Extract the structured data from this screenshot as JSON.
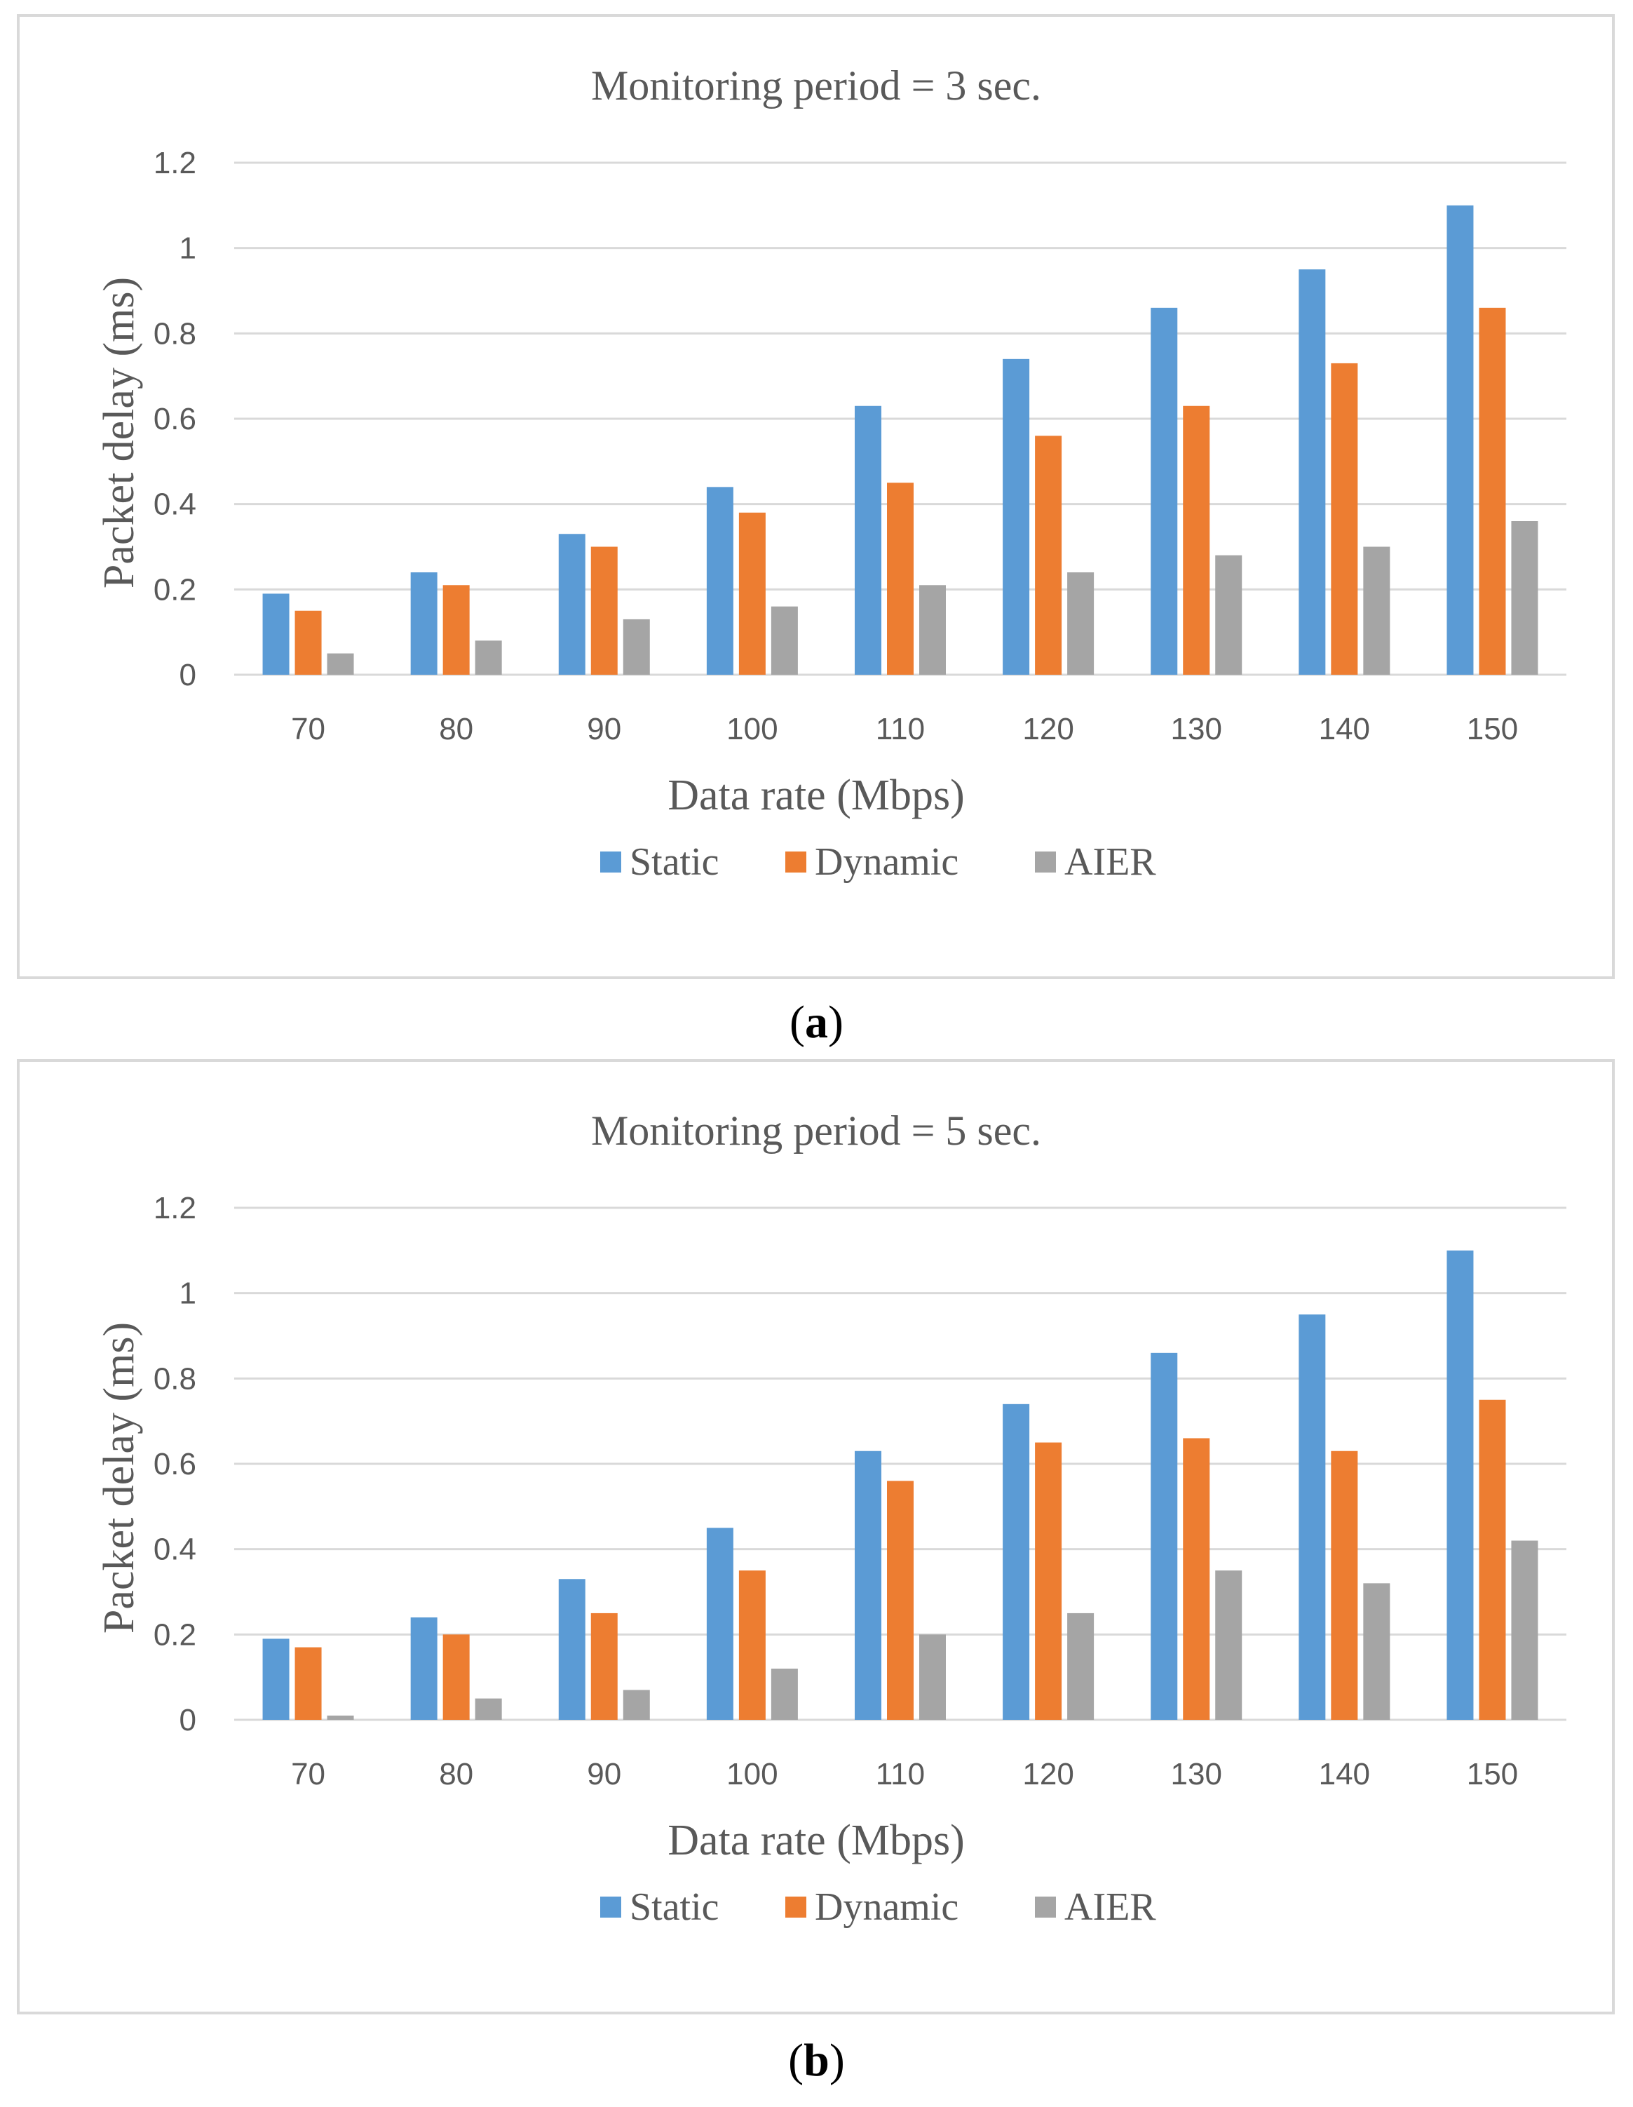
{
  "colors": {
    "static": "#5b9bd5",
    "dynamic": "#ed7d31",
    "aier": "#a5a5a5",
    "grid": "#d9d9d9",
    "text": "#595959"
  },
  "chart_data": [
    {
      "type": "bar",
      "title": "Monitoring period = 3 sec.",
      "xlabel": "Data rate (Mbps)",
      "ylabel": "Packet delay (ms)",
      "ylim": [
        0,
        1.2
      ],
      "yticks": [
        "0",
        "0.2",
        "0.4",
        "0.6",
        "0.8",
        "1",
        "1.2"
      ],
      "grid": true,
      "legend_position": "bottom",
      "categories": [
        "70",
        "80",
        "90",
        "100",
        "110",
        "120",
        "130",
        "140",
        "150"
      ],
      "series": [
        {
          "name": "Static",
          "values": [
            0.19,
            0.24,
            0.33,
            0.44,
            0.63,
            0.74,
            0.86,
            0.95,
            1.1
          ]
        },
        {
          "name": "Dynamic",
          "values": [
            0.15,
            0.21,
            0.3,
            0.38,
            0.45,
            0.56,
            0.63,
            0.73,
            0.86
          ]
        },
        {
          "name": "AIER",
          "values": [
            0.05,
            0.08,
            0.13,
            0.16,
            0.21,
            0.24,
            0.28,
            0.3,
            0.36
          ]
        }
      ],
      "caption": "a"
    },
    {
      "type": "bar",
      "title": "Monitoring period = 5 sec.",
      "xlabel": "Data rate (Mbps)",
      "ylabel": "Packet delay (ms)",
      "ylim": [
        0,
        1.2
      ],
      "yticks": [
        "0",
        "0.2",
        "0.4",
        "0.6",
        "0.8",
        "1",
        "1.2"
      ],
      "grid": true,
      "legend_position": "bottom",
      "categories": [
        "70",
        "80",
        "90",
        "100",
        "110",
        "120",
        "130",
        "140",
        "150"
      ],
      "series": [
        {
          "name": "Static",
          "values": [
            0.19,
            0.24,
            0.33,
            0.45,
            0.63,
            0.74,
            0.86,
            0.95,
            1.1
          ]
        },
        {
          "name": "Dynamic",
          "values": [
            0.17,
            0.2,
            0.25,
            0.35,
            0.56,
            0.65,
            0.66,
            0.63,
            0.75
          ]
        },
        {
          "name": "AIER",
          "values": [
            0.01,
            0.05,
            0.07,
            0.12,
            0.2,
            0.25,
            0.35,
            0.32,
            0.42
          ]
        }
      ],
      "caption": "b"
    }
  ]
}
